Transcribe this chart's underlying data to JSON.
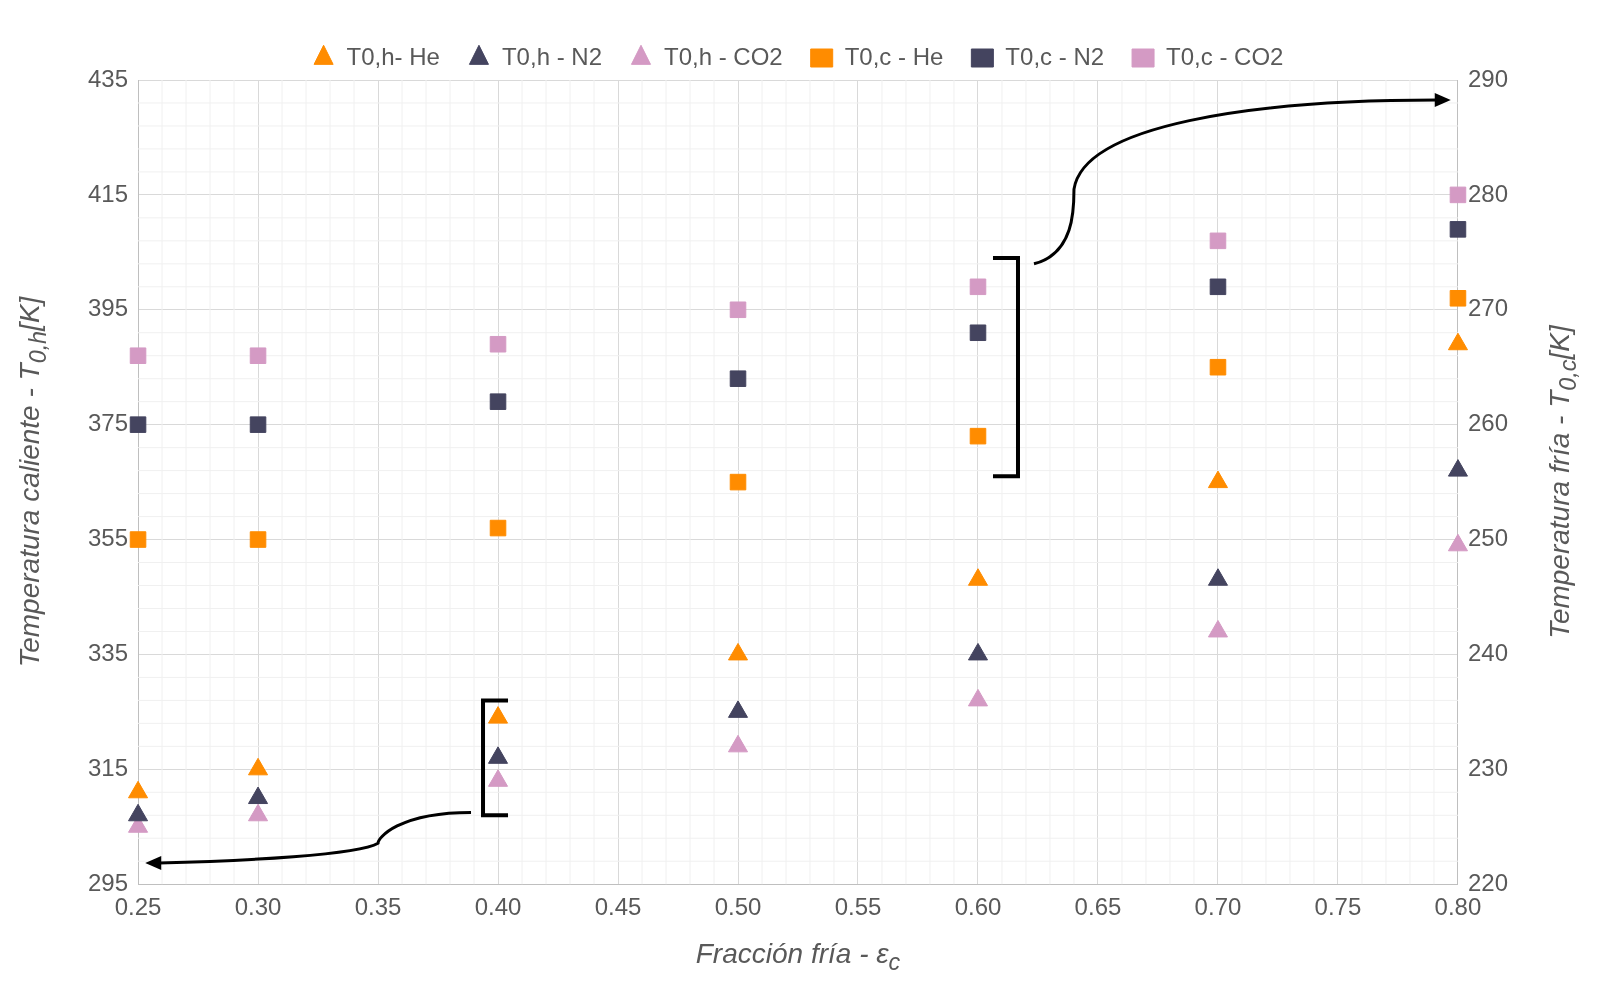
{
  "chart_data": {
    "type": "scatter",
    "xlabel": "Fracción fría - ε$_{c}$",
    "ylabel": "Temperatura caliente - T$_{0,h}$[K]",
    "y2label": "Temperatura fría - T$_{0,c}$[K]",
    "x": [
      0.25,
      0.3,
      0.4,
      0.5,
      0.6,
      0.7,
      0.8
    ],
    "series": [
      {
        "name": "T0,h- He",
        "color": "#ff8c00",
        "marker": "triangle",
        "values": [
          311,
          315,
          324,
          335,
          348,
          365,
          389
        ]
      },
      {
        "name": "T0,h - N2",
        "color": "#44445f",
        "marker": "triangle",
        "values": [
          307,
          310,
          317,
          325,
          335,
          348,
          367
        ]
      },
      {
        "name": "T0,h - CO2",
        "color": "#d49ac4",
        "marker": "triangle",
        "values": [
          305,
          307,
          313,
          319,
          327,
          339,
          354
        ]
      },
      {
        "name": "T0,c - He",
        "color": "#ff8c00",
        "marker": "square",
        "axis": "y2",
        "values": [
          250,
          250,
          251,
          255,
          259,
          265,
          271
        ]
      },
      {
        "name": "T0,c - N2",
        "color": "#44445f",
        "marker": "square",
        "axis": "y2",
        "values": [
          260,
          260,
          262,
          264,
          268,
          272,
          277
        ]
      },
      {
        "name": "T0,c - CO2",
        "color": "#d49ac4",
        "marker": "square",
        "axis": "y2",
        "values": [
          266,
          266,
          267,
          270,
          272,
          276,
          280
        ]
      }
    ],
    "xlim": [
      0.25,
      0.8
    ],
    "xticks": [
      0.25,
      {
        "value": 0.3,
        "label": "0.30"
      },
      0.35,
      {
        "value": 0.4,
        "label": "0.40"
      },
      0.45,
      {
        "value": 0.5,
        "label": "0.50"
      },
      0.55,
      {
        "value": 0.6,
        "label": "0.60"
      },
      0.65,
      {
        "value": 0.7,
        "label": "0.70"
      },
      0.75,
      {
        "value": 0.8,
        "label": "0.80"
      }
    ],
    "ylim": [
      295,
      435
    ],
    "yticks": [
      295,
      315,
      335,
      355,
      375,
      395,
      415,
      435
    ],
    "y2lim": [
      220,
      290
    ],
    "y2ticks": [
      220,
      230,
      240,
      250,
      260,
      270,
      280,
      290
    ],
    "grid": true,
    "legend": "top"
  }
}
